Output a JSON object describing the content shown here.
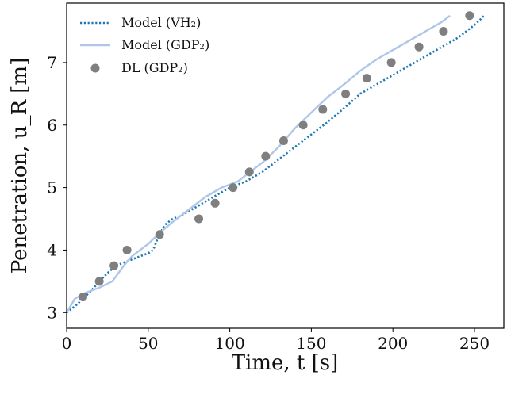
{
  "chart_data": {
    "type": "line",
    "xlabel": "Time, t [s]",
    "ylabel": "Penetration, u_R [m]",
    "xlim": [
      0,
      268
    ],
    "ylim": [
      2.75,
      7.95
    ],
    "xticks": [
      0,
      50,
      100,
      150,
      200,
      250
    ],
    "yticks": [
      3,
      4,
      5,
      6,
      7
    ],
    "legend_position": "top-left",
    "grid": false,
    "series": [
      {
        "name": "Model (VH₂)",
        "style": "dotted-line",
        "color": "#1f77b4",
        "x": [
          0,
          5,
          10,
          15,
          20,
          25,
          30,
          35,
          40,
          45,
          50,
          53,
          56,
          60,
          65,
          70,
          80,
          90,
          100,
          110,
          120,
          130,
          140,
          150,
          160,
          170,
          180,
          190,
          200,
          210,
          220,
          230,
          240,
          250,
          256
        ],
        "y": [
          3.0,
          3.1,
          3.22,
          3.35,
          3.5,
          3.63,
          3.75,
          3.8,
          3.85,
          3.9,
          3.95,
          4.0,
          4.2,
          4.4,
          4.5,
          4.55,
          4.7,
          4.85,
          5.0,
          5.1,
          5.25,
          5.45,
          5.65,
          5.85,
          6.05,
          6.27,
          6.5,
          6.65,
          6.8,
          6.95,
          7.1,
          7.25,
          7.4,
          7.6,
          7.75
        ]
      },
      {
        "name": "Model (GDP₂)",
        "style": "solid-line",
        "color": "#aec7e8",
        "x": [
          0,
          5,
          10,
          15,
          20,
          28,
          35,
          40,
          45,
          50,
          56,
          65,
          75,
          85,
          95,
          100,
          105,
          110,
          115,
          120,
          130,
          140,
          150,
          160,
          170,
          180,
          190,
          200,
          210,
          220,
          230,
          235
        ],
        "y": [
          3.0,
          3.22,
          3.3,
          3.35,
          3.4,
          3.5,
          3.75,
          3.9,
          4.0,
          4.1,
          4.25,
          4.45,
          4.65,
          4.85,
          5.0,
          5.05,
          5.1,
          5.2,
          5.3,
          5.4,
          5.65,
          5.95,
          6.2,
          6.45,
          6.65,
          6.87,
          7.05,
          7.2,
          7.35,
          7.5,
          7.65,
          7.75
        ]
      },
      {
        "name": "DL (GDP₂)",
        "style": "markers",
        "color": "#7f7f7f",
        "x": [
          10,
          20,
          29,
          37,
          57,
          81,
          91,
          102,
          112,
          122,
          133,
          145,
          157,
          171,
          184,
          199,
          216,
          231,
          247
        ],
        "y": [
          3.25,
          3.5,
          3.75,
          4.0,
          4.25,
          4.5,
          4.75,
          5.0,
          5.25,
          5.5,
          5.75,
          6.0,
          6.25,
          6.5,
          6.75,
          7.0,
          7.25,
          7.5,
          7.75
        ]
      }
    ]
  }
}
